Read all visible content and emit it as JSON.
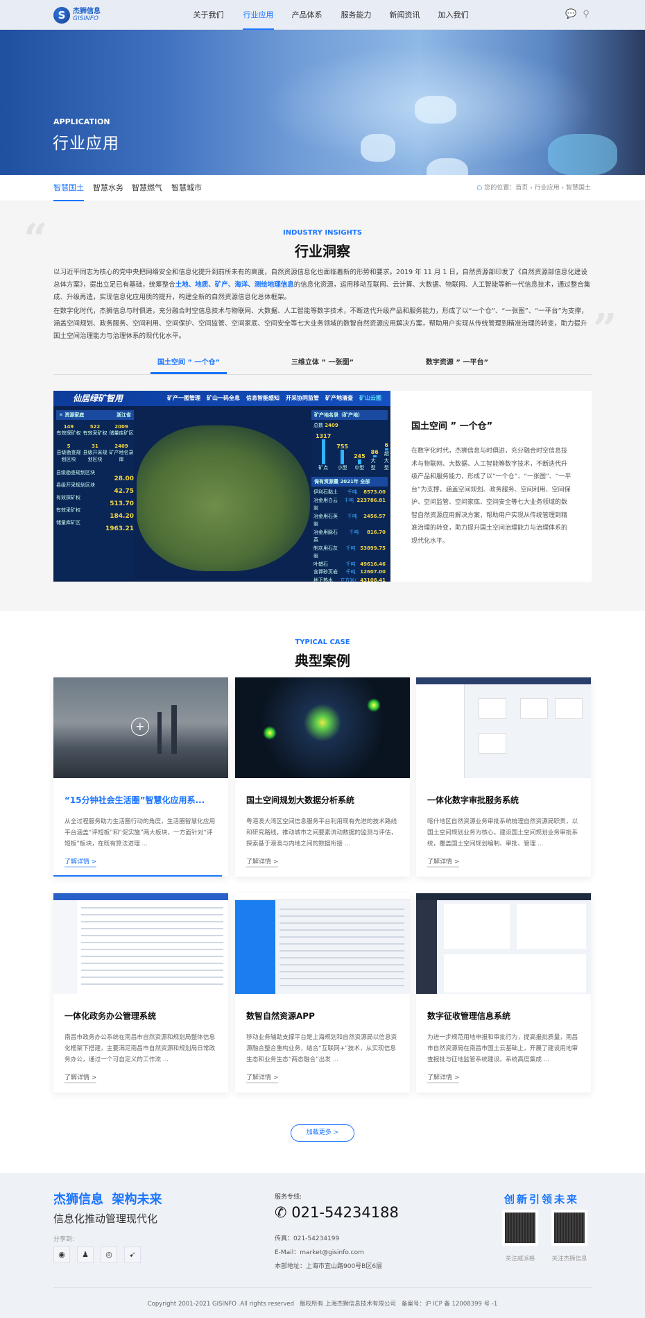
{
  "header": {
    "logo_cn": "杰狮信息",
    "logo_en": "GISINFO",
    "nav": [
      "关于我们",
      "行业应用",
      "产品体系",
      "服务能力",
      "新闻资讯",
      "加入我们"
    ],
    "active_nav": 1,
    "icons": [
      "wechat-icon",
      "search-icon"
    ]
  },
  "hero": {
    "en": "APPLICATION",
    "title": "行业应用"
  },
  "subnav": {
    "tabs": [
      "智慧国土",
      "智慧水务",
      "智慧燃气",
      "智慧城市"
    ],
    "active": 0,
    "breadcrumb": {
      "label": "您的位置：",
      "items": [
        "首页",
        "行业应用",
        "智慧国土"
      ]
    }
  },
  "insights": {
    "en": "INDUSTRY INSIGHTS",
    "title": "行业洞察",
    "p1_a": "以习近平同志为核心的党中央把网络安全和信息化提升到前所未有的高度，自然资源信息化也面临着新的形势和要求。2019 年 11 月 1 日，自然资源部印发了《自然资源部信息化建设总体方案》，提出立足已有基础，统筹整合",
    "p1_hl": "土地、地质、矿产、海洋、测绘地理信息",
    "p1_b": "的信息化资源，运用移动互联网、云计算、大数据、物联网、人工智能等新一代信息技术，通过整合集成、升级再造，实现信息化应用质的提升，构建全新的自然资源信息化总体框架。",
    "p2": "在数字化时代，杰狮信息与时俱进，充分融合时空信息技术与物联网、大数据、人工智能等数字技术，不断迭代升级产品和服务能力，形成了以“一个仓”、“一张图”、“一平台”为支撑，涵盖空间规划、政务服务、空间利用、空间保护、空间监管、空间家底、空间安全等七大业务领域的数智自然资源应用解决方案，帮助用户实现从传统管理到精准治理的转变，助力提升国土空间治理能力与治理体系的现代化水平。",
    "tabs": [
      "国土空间 ” 一个仓”",
      "三维立体 ” 一张图”",
      "数字资源 ” 一平台”"
    ],
    "active_tab": 0,
    "panel": {
      "title": "国土空间 ” 一个仓”",
      "body": "在数字化时代，杰狮信息与时俱进，充分融合时空信息技术与物联网、大数据、人工智能等数字技术，不断迭代升级产品和服务能力，形成了以“一个仓”、“一张图”、“一平台”为支撑，涵盖空间规划、政务服务、空间利用、空间保护、空间监管、空间家底、空间安全等七大业务领域的数智自然资源应用解决方案，帮助用户实现从传统管理到精准治理的转变，助力提升国土空间治理能力与治理体系的现代化水平。",
      "dashboard": {
        "title": "仙居绿矿智用",
        "tabs": [
          "矿产一图管理",
          "矿山一码全息",
          "信息智能感知",
          "开采协同监管",
          "矿产地清查",
          "矿山云图"
        ],
        "left_title": "资源家底",
        "region": "浙江省",
        "counts": [
          [
            "149",
            "有效探矿权"
          ],
          [
            "522",
            "有效采矿权"
          ],
          [
            "2009",
            "储量库矿区"
          ],
          [
            "5",
            "县级勘查规划区块"
          ],
          [
            "31",
            "县级开采规划区块"
          ],
          [
            "2409",
            "矿产地名录库"
          ]
        ],
        "areas": [
          [
            "县级勘查规划区块",
            "28.00"
          ],
          [
            "县级开采规划区块",
            "42.75"
          ],
          [
            "有效探矿权",
            "513.70"
          ],
          [
            "有效采矿权",
            "184.20"
          ],
          [
            "储量库矿区",
            "1963.21"
          ]
        ],
        "right_title": "矿产地名录（矿产地）",
        "total": "2409",
        "bars": [
          [
            "1317",
            "矿点"
          ],
          [
            "755",
            "小型"
          ],
          [
            "245",
            "中型"
          ],
          [
            "86",
            "大型"
          ],
          [
            "6",
            "超大型"
          ]
        ],
        "reserve_title": "保有资源量",
        "year": "2021年",
        "filter": "全部",
        "table": [
          [
            "伊利石黏土",
            "千吨",
            "8573.00"
          ],
          [
            "冶金用白云岩",
            "千吨",
            "223786.81"
          ],
          [
            "冶金用石英岩",
            "千吨",
            "2456.57"
          ],
          [
            "冶金用脉石英",
            "千吨",
            "816.70"
          ],
          [
            "制灰用石灰岩",
            "千吨",
            "53899.75"
          ],
          [
            "叶蜡石",
            "千吨",
            "49616.46"
          ],
          [
            "含钾砂页岩",
            "千吨",
            "12607.00"
          ],
          [
            "地下热水",
            "立方米/日",
            "43108.41"
          ],
          [
            "建筑用凝灰岩",
            "千立方米",
            "1246033.72"
          ]
        ]
      }
    }
  },
  "cases": {
    "en": "TYPICAL CASE",
    "title": "典型案例",
    "more_label": "了解详情 >",
    "items": [
      {
        "title": "“15分钟社会生活圈”智慧化应用系...",
        "desc": "从全过程服务助力生活圈行动的角度，生活圈智慧化应用平台涵盖“评短板”和“促实施”两大板块，一方面针对“评短板”板块，在既有算法进理 ...",
        "active": true
      },
      {
        "title": "国土空间规划大数据分析系统",
        "desc": "粤港澳大湾区空间信息服务平台利用现有先进的技术路线和研究路线，推动城市之间要素流动数据的监测与评估，探索基于港澳与内地之间的数据衔接 ..."
      },
      {
        "title": "一体化数字审批服务系统",
        "desc": "喀什地区自然资源业务审批系统梳理自然资源局职责，以国土空间规划业务为核心，建设国土空间规划业务审批系统，覆盖国土空间规划编制、审批、管理 ..."
      },
      {
        "title": "一体化政务办公管理系统",
        "desc": "南昌市政务办公系统在南昌市自然资源和规划局整体信息化框架下搭建，主要满足南昌市自然资源和规划局日常政务办公，通过一个可自定义的工作流 ..."
      },
      {
        "title": "数智自然资源APP",
        "desc": "移动业务辅助支撑平台是上海规划和自然资源局以信息资源融合整合重构业务，结合“互联网+”技术，从实现信息生态和业务生态“两态融合”出发 ..."
      },
      {
        "title": "数字征收管理信息系统",
        "desc": "为进一步规范用地申报和审批行为，提高报批质量，南昌市自然资源局在南昌市国土云基础上，开展了建设用地审查报批与征地监管系统建设。系统高度集成 ..."
      }
    ],
    "load_more": "加载更多 >"
  },
  "footer": {
    "slogan": "杰狮信息  架构未来",
    "sub": "信息化推动管理现代化",
    "share_label": "分享到:",
    "share_icons": [
      "wechat-icon",
      "qq-icon",
      "weibo-icon",
      "feather-icon"
    ],
    "service_label": "服务专线:",
    "phone": "021-54234188",
    "fax": "传真：021-54234199",
    "email": "E-Mail：market@gisinfo.com",
    "address": "本部地址：上海市宜山路900号B区6层",
    "innovation": "创新引领未来",
    "qr_labels": [
      "关注威派格",
      "关注杰狮信息"
    ],
    "copyright": "Copyright 2001-2021 GISINFO .All rights reserved   版权所有 上海杰狮信息技术有限公司   备案号：沪 ICP 备 12008399 号 -1"
  },
  "colors": {
    "accent": "#1a75ff",
    "footer_bg": "#eef1f6",
    "section_bg": "#f5f5f5"
  }
}
